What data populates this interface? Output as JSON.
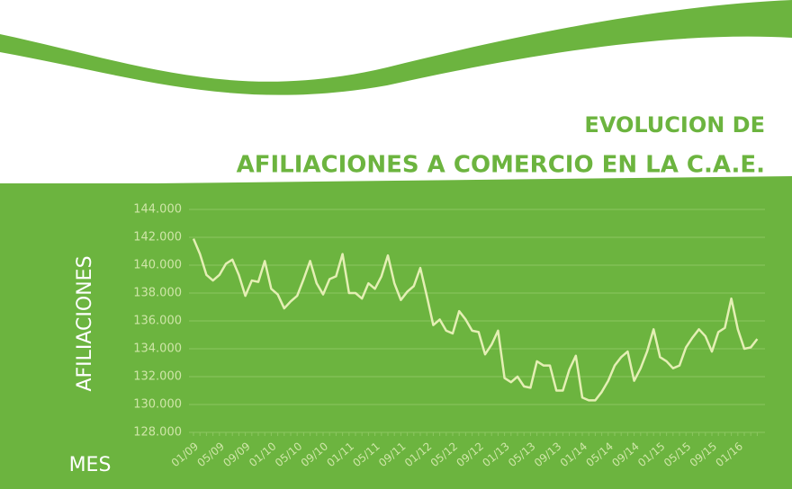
{
  "chart_data": {
    "type": "line",
    "title_lines": [
      "EVOLUCION DE",
      "AFILIACIONES A COMERCIO EN LA C.A.E."
    ],
    "y_label": "AFILIACIONES",
    "x_label": "MES",
    "categories": [
      "01/09",
      null,
      null,
      null,
      "05/09",
      null,
      null,
      null,
      "09/09",
      null,
      null,
      null,
      "01/10",
      null,
      null,
      null,
      "05/10",
      null,
      null,
      null,
      "09/10",
      null,
      null,
      null,
      "01/11",
      null,
      null,
      null,
      "05/11",
      null,
      null,
      null,
      "09/11",
      null,
      null,
      null,
      "01/12",
      null,
      null,
      null,
      "05/12",
      null,
      null,
      null,
      "09/12",
      null,
      null,
      null,
      "01/13",
      null,
      null,
      null,
      "05/13",
      null,
      null,
      null,
      "09/13",
      null,
      null,
      null,
      "01/14",
      null,
      null,
      null,
      "05/14",
      null,
      null,
      null,
      "09/14",
      null,
      null,
      null,
      "01/15",
      null,
      null,
      null,
      "05/15",
      null,
      null,
      null,
      "09/15",
      null,
      null,
      null,
      "01/16",
      null,
      null,
      null
    ],
    "series": [
      {
        "name": "AFILIACIONES",
        "color": "#e4efb4",
        "values": [
          141900,
          140800,
          139300,
          138900,
          139300,
          140100,
          140400,
          139300,
          137800,
          138900,
          138800,
          140300,
          138300,
          137900,
          136900,
          137400,
          137800,
          139000,
          140300,
          138700,
          137900,
          139000,
          139200,
          140800,
          138000,
          138000,
          137600,
          138700,
          138300,
          139200,
          140700,
          138700,
          137500,
          138100,
          138500,
          139800,
          137800,
          135700,
          136100,
          135300,
          135100,
          136700,
          136100,
          135300,
          135200,
          133600,
          134300,
          135300,
          131900,
          131600,
          132000,
          131300,
          131200,
          133100,
          132800,
          132800,
          131000,
          131000,
          132500,
          133500,
          130500,
          130300,
          130300,
          130900,
          131700,
          132800,
          133400,
          133800,
          131700,
          132600,
          133800,
          135400,
          133400,
          133100,
          132600,
          132800,
          134100,
          134800,
          135400,
          134900,
          133800,
          135200,
          135500,
          137600,
          135400,
          134000,
          134100,
          134700
        ]
      }
    ],
    "ylim": [
      128000,
      144000
    ],
    "yticks": [
      {
        "value": 128000,
        "label": "128.000"
      },
      {
        "value": 130000,
        "label": "130.000"
      },
      {
        "value": 132000,
        "label": "132.000"
      },
      {
        "value": 134000,
        "label": "134.000"
      },
      {
        "value": 136000,
        "label": "136.000"
      },
      {
        "value": 138000,
        "label": "138.000"
      },
      {
        "value": 140000,
        "label": "140.000"
      },
      {
        "value": 142000,
        "label": "142.000"
      },
      {
        "value": 144000,
        "label": "144.000"
      }
    ],
    "grid": true
  }
}
